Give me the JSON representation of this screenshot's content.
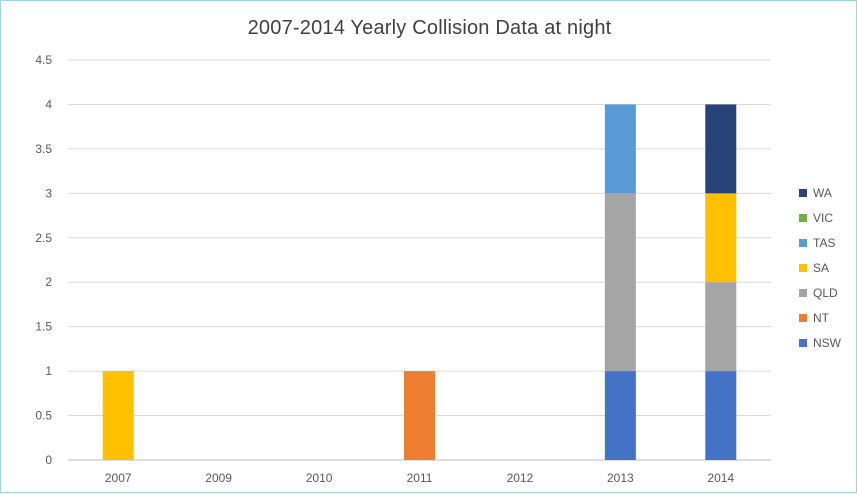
{
  "chart_data": {
    "type": "bar",
    "stacked": true,
    "title": "2007-2014 Yearly Collision Data at night",
    "xlabel": "",
    "ylabel": "",
    "ylim": [
      0,
      4.5
    ],
    "yticks": [
      "0",
      "0.5",
      "1",
      "1.5",
      "2",
      "2.5",
      "3",
      "3.5",
      "4",
      "4.5"
    ],
    "grid": true,
    "legend_position": "right",
    "categories": [
      "2007",
      "2009",
      "2010",
      "2011",
      "2012",
      "2013",
      "2014"
    ],
    "series": [
      {
        "name": "NSW",
        "color": "#4472c4",
        "values": [
          0,
          0,
          0,
          0,
          0,
          1,
          1
        ]
      },
      {
        "name": "NT",
        "color": "#ed7d31",
        "values": [
          0,
          0,
          0,
          1,
          0,
          0,
          0
        ]
      },
      {
        "name": "QLD",
        "color": "#a5a5a5",
        "values": [
          0,
          0,
          0,
          0,
          0,
          2,
          1
        ]
      },
      {
        "name": "SA",
        "color": "#ffc000",
        "values": [
          1,
          0,
          0,
          0,
          0,
          0,
          1
        ]
      },
      {
        "name": "TAS",
        "color": "#5b9bd5",
        "values": [
          0,
          0,
          0,
          0,
          0,
          1,
          0
        ]
      },
      {
        "name": "VIC",
        "color": "#70ad47",
        "values": [
          0,
          0,
          0,
          0,
          0,
          0,
          0
        ]
      },
      {
        "name": "WA",
        "color": "#264478",
        "values": [
          0,
          0,
          0,
          0,
          0,
          0,
          1
        ]
      }
    ]
  }
}
